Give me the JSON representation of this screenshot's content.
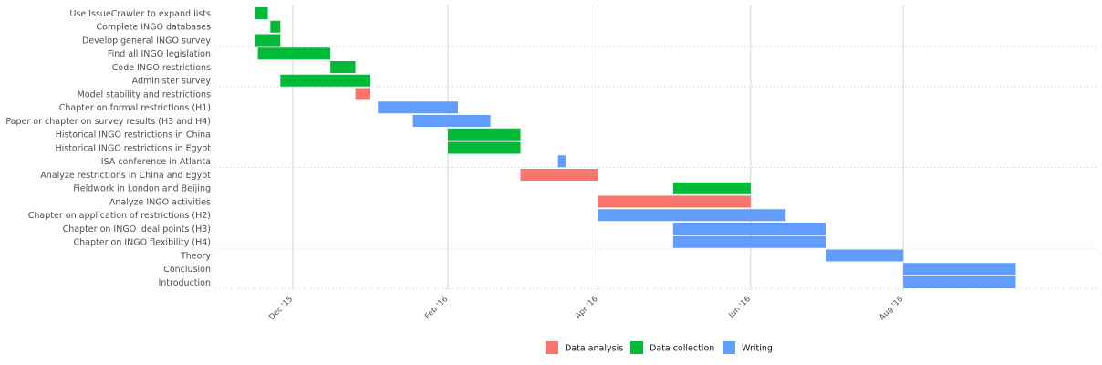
{
  "chart_data": {
    "type": "gantt",
    "title": "",
    "xlabel": "",
    "ylabel": "",
    "x_axis": {
      "type": "date",
      "range": [
        "2015-10-31",
        "2016-10-18"
      ],
      "ticks": [
        {
          "date": "2015-12-01",
          "label": "Dec '15"
        },
        {
          "date": "2016-02-01",
          "label": "Feb '16"
        },
        {
          "date": "2016-04-01",
          "label": "Apr '16"
        },
        {
          "date": "2016-06-01",
          "label": "Jun '16"
        },
        {
          "date": "2016-08-01",
          "label": "Aug '16"
        }
      ]
    },
    "grid": {
      "vertical_major": true,
      "horizontal_dotted_separators": true
    },
    "legend": {
      "position": "bottom",
      "entries": [
        {
          "name": "Data analysis",
          "color": "#F8766D"
        },
        {
          "name": "Data collection",
          "color": "#00BA38"
        },
        {
          "name": "Writing",
          "color": "#619CFF"
        }
      ]
    },
    "tasks": [
      {
        "name": "Use IssueCrawler to expand lists",
        "start": "2015-11-16",
        "end": "2015-11-21",
        "type": "Data collection"
      },
      {
        "name": "Complete INGO databases",
        "start": "2015-11-22",
        "end": "2015-11-26",
        "type": "Data collection"
      },
      {
        "name": "Develop general INGO survey",
        "start": "2015-11-16",
        "end": "2015-11-26",
        "type": "Data collection"
      },
      {
        "name": "Find all INGO legislation",
        "start": "2015-11-17",
        "end": "2015-12-16",
        "type": "Data collection"
      },
      {
        "name": "Code INGO restrictions",
        "start": "2015-12-16",
        "end": "2015-12-26",
        "type": "Data collection"
      },
      {
        "name": "Administer survey",
        "start": "2015-11-26",
        "end": "2016-01-01",
        "type": "Data collection"
      },
      {
        "name": "Model stability and restrictions",
        "start": "2015-12-26",
        "end": "2016-01-01",
        "type": "Data analysis"
      },
      {
        "name": "Chapter on formal restrictions (H1)",
        "start": "2016-01-04",
        "end": "2016-02-05",
        "type": "Writing"
      },
      {
        "name": "Paper or chapter on survey results (H3 and H4)",
        "start": "2016-01-18",
        "end": "2016-02-18",
        "type": "Writing"
      },
      {
        "name": "Historical INGO restrictions in China",
        "start": "2016-02-01",
        "end": "2016-03-01",
        "type": "Data collection"
      },
      {
        "name": "Historical INGO restrictions in Egypt",
        "start": "2016-02-01",
        "end": "2016-03-01",
        "type": "Data collection"
      },
      {
        "name": "ISA conference in Atlanta",
        "start": "2016-03-16",
        "end": "2016-03-19",
        "type": "Writing"
      },
      {
        "name": "Analyze restrictions in China and Egypt",
        "start": "2016-03-01",
        "end": "2016-04-01",
        "type": "Data analysis"
      },
      {
        "name": "Fieldwork in London and Beijing",
        "start": "2016-05-01",
        "end": "2016-06-01",
        "type": "Data collection"
      },
      {
        "name": "Analyze INGO activities",
        "start": "2016-04-01",
        "end": "2016-06-01",
        "type": "Data analysis"
      },
      {
        "name": "Chapter on application of restrictions (H2)",
        "start": "2016-04-01",
        "end": "2016-06-15",
        "type": "Writing"
      },
      {
        "name": "Chapter on INGO ideal points (H3)",
        "start": "2016-05-01",
        "end": "2016-07-01",
        "type": "Writing"
      },
      {
        "name": "Chapter on INGO flexibility (H4)",
        "start": "2016-05-01",
        "end": "2016-07-01",
        "type": "Writing"
      },
      {
        "name": "Theory",
        "start": "2016-07-01",
        "end": "2016-08-01",
        "type": "Writing"
      },
      {
        "name": "Conclusion",
        "start": "2016-08-01",
        "end": "2016-09-15",
        "type": "Writing"
      },
      {
        "name": "Introduction",
        "start": "2016-08-01",
        "end": "2016-09-15",
        "type": "Writing"
      }
    ],
    "group_separators_after": [
      3,
      6,
      12,
      18
    ]
  }
}
